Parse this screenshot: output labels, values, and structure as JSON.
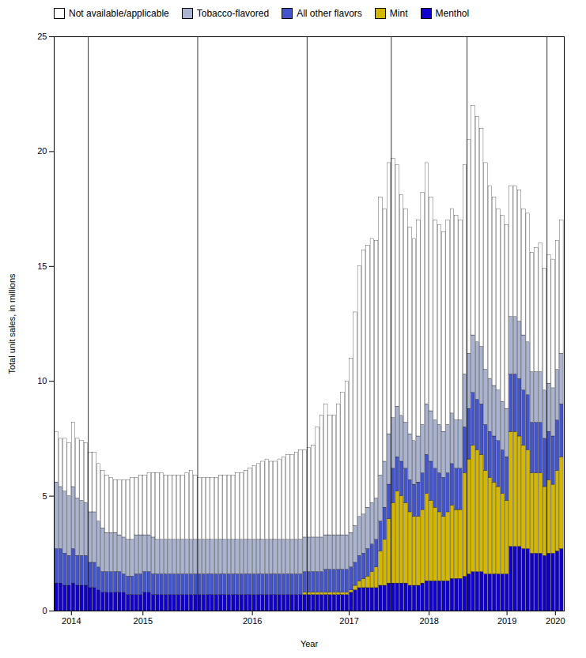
{
  "chart_data": {
    "type": "bar",
    "stacked": true,
    "xlabel": "Year",
    "ylabel": "Total unit sales, in millions",
    "categories": [
      "2014",
      null,
      null,
      null,
      null,
      null,
      null,
      null,
      "2015",
      null,
      null,
      null,
      null,
      null,
      null,
      null,
      null,
      null,
      null,
      null,
      null,
      null,
      null,
      null,
      null,
      null,
      null,
      null,
      null,
      null,
      null,
      null,
      null,
      null,
      "2016",
      null,
      null,
      null,
      null,
      null,
      null,
      null,
      null,
      null,
      null,
      null,
      null,
      null,
      null,
      null,
      null,
      null,
      null,
      null,
      null,
      null,
      null,
      null,
      null,
      null,
      "2017",
      null,
      null,
      null,
      null,
      null,
      null,
      null,
      null,
      null,
      null,
      null,
      null,
      null,
      null,
      null,
      null,
      null,
      null,
      null,
      "2018",
      null,
      null,
      null,
      null,
      null,
      null,
      null,
      null,
      null,
      null,
      null,
      null,
      null,
      null,
      null,
      null,
      null,
      "2019",
      null,
      null,
      null,
      null,
      null,
      null,
      null,
      null,
      null,
      null,
      null,
      null,
      null,
      null,
      null,
      null,
      null,
      null,
      "2020",
      null,
      null,
      null
    ],
    "series": [
      {
        "name": "Menthol",
        "color": "#1100cc",
        "values": [
          1.2,
          1.2,
          1.1,
          1.1,
          1.2,
          1.1,
          1.1,
          1.1,
          1.0,
          1.0,
          0.9,
          0.8,
          0.8,
          0.8,
          0.8,
          0.8,
          0.8,
          0.7,
          0.7,
          0.7,
          0.7,
          0.8,
          0.8,
          0.7,
          0.7,
          0.7,
          0.7,
          0.7,
          0.7,
          0.7,
          0.7,
          0.7,
          0.7,
          0.7,
          0.7,
          0.7,
          0.7,
          0.7,
          0.7,
          0.7,
          0.7,
          0.7,
          0.7,
          0.7,
          0.7,
          0.7,
          0.7,
          0.7,
          0.7,
          0.7,
          0.7,
          0.7,
          0.7,
          0.7,
          0.7,
          0.7,
          0.7,
          0.7,
          0.7,
          0.7,
          0.7,
          0.7,
          0.7,
          0.7,
          0.7,
          0.7,
          0.7,
          0.7,
          0.7,
          0.7,
          0.8,
          0.9,
          1.0,
          1.0,
          1.0,
          1.0,
          1.0,
          1.1,
          1.1,
          1.2,
          1.2,
          1.2,
          1.2,
          1.2,
          1.1,
          1.1,
          1.1,
          1.2,
          1.3,
          1.3,
          1.3,
          1.3,
          1.3,
          1.3,
          1.4,
          1.4,
          1.4,
          1.5,
          1.6,
          1.7,
          1.7,
          1.7,
          1.6,
          1.6,
          1.6,
          1.6,
          1.6,
          1.6,
          2.8,
          2.8,
          2.8,
          2.7,
          2.7,
          2.5,
          2.5,
          2.5,
          2.4,
          2.5,
          2.5,
          2.6,
          2.7
        ]
      },
      {
        "name": "Mint",
        "color": "#d4b800",
        "values": [
          0.0,
          0.0,
          0.0,
          0.0,
          0.0,
          0.0,
          0.0,
          0.0,
          0.0,
          0.0,
          0.0,
          0.0,
          0.0,
          0.0,
          0.0,
          0.0,
          0.0,
          0.0,
          0.0,
          0.0,
          0.0,
          0.0,
          0.0,
          0.0,
          0.0,
          0.0,
          0.0,
          0.0,
          0.0,
          0.0,
          0.0,
          0.0,
          0.0,
          0.0,
          0.0,
          0.0,
          0.0,
          0.0,
          0.0,
          0.0,
          0.0,
          0.0,
          0.0,
          0.0,
          0.0,
          0.0,
          0.0,
          0.0,
          0.0,
          0.0,
          0.0,
          0.0,
          0.0,
          0.0,
          0.0,
          0.0,
          0.0,
          0.0,
          0.0,
          0.1,
          0.1,
          0.1,
          0.1,
          0.1,
          0.1,
          0.1,
          0.1,
          0.1,
          0.1,
          0.1,
          0.1,
          0.2,
          0.3,
          0.4,
          0.5,
          0.7,
          0.9,
          1.5,
          2.0,
          2.8,
          3.5,
          4.0,
          3.8,
          3.5,
          3.2,
          3.0,
          3.0,
          3.2,
          3.8,
          3.5,
          3.2,
          3.0,
          2.8,
          3.0,
          3.2,
          3.0,
          3.0,
          4.5,
          5.0,
          5.5,
          5.3,
          5.1,
          4.5,
          4.2,
          4.0,
          3.8,
          3.5,
          3.2,
          5.0,
          5.0,
          4.8,
          4.5,
          4.3,
          3.5,
          3.5,
          3.5,
          3.0,
          3.2,
          3.0,
          3.5,
          4.0
        ]
      },
      {
        "name": "All other flavors",
        "color": "#4455cc",
        "values": [
          1.5,
          1.5,
          1.4,
          1.3,
          1.5,
          1.3,
          1.3,
          1.3,
          1.1,
          1.1,
          1.0,
          0.9,
          0.9,
          0.9,
          0.9,
          0.9,
          0.8,
          0.8,
          0.8,
          0.9,
          0.9,
          0.9,
          0.9,
          0.9,
          0.9,
          0.9,
          0.9,
          0.9,
          0.9,
          0.9,
          0.9,
          0.9,
          0.9,
          0.9,
          0.9,
          0.9,
          0.9,
          0.9,
          0.9,
          0.9,
          0.9,
          0.9,
          0.9,
          0.9,
          0.9,
          0.9,
          0.9,
          0.9,
          0.9,
          0.9,
          0.9,
          0.9,
          0.9,
          0.9,
          0.9,
          0.9,
          0.9,
          0.9,
          0.9,
          0.9,
          0.9,
          0.9,
          0.9,
          0.9,
          1.0,
          1.0,
          1.0,
          1.0,
          1.0,
          1.0,
          1.0,
          1.0,
          1.1,
          1.1,
          1.2,
          1.2,
          1.2,
          1.3,
          1.4,
          1.5,
          1.5,
          1.5,
          1.5,
          1.5,
          1.4,
          1.4,
          1.5,
          1.6,
          1.7,
          1.7,
          1.7,
          1.7,
          1.7,
          1.7,
          1.8,
          1.8,
          1.8,
          2.0,
          2.2,
          2.3,
          2.2,
          2.2,
          2.0,
          2.0,
          2.0,
          2.0,
          1.9,
          1.9,
          2.5,
          2.5,
          2.5,
          2.4,
          2.4,
          2.2,
          2.2,
          2.2,
          2.1,
          2.1,
          2.1,
          2.2,
          2.3
        ]
      },
      {
        "name": "Tobacco-flavored",
        "color": "#aab4d0",
        "values": [
          2.9,
          2.7,
          2.7,
          2.6,
          2.7,
          2.5,
          2.4,
          2.3,
          2.2,
          2.2,
          2.0,
          1.9,
          1.7,
          1.7,
          1.7,
          1.6,
          1.6,
          1.6,
          1.6,
          1.7,
          1.7,
          1.6,
          1.6,
          1.6,
          1.5,
          1.5,
          1.5,
          1.5,
          1.5,
          1.5,
          1.5,
          1.5,
          1.5,
          1.5,
          1.5,
          1.5,
          1.5,
          1.5,
          1.5,
          1.5,
          1.5,
          1.5,
          1.5,
          1.5,
          1.5,
          1.5,
          1.5,
          1.5,
          1.5,
          1.5,
          1.5,
          1.5,
          1.5,
          1.5,
          1.5,
          1.5,
          1.5,
          1.5,
          1.5,
          1.5,
          1.5,
          1.5,
          1.5,
          1.5,
          1.5,
          1.5,
          1.5,
          1.5,
          1.5,
          1.5,
          1.5,
          1.6,
          1.7,
          1.7,
          1.8,
          1.8,
          1.8,
          2.0,
          2.0,
          2.2,
          2.2,
          2.2,
          2.0,
          2.0,
          2.0,
          1.9,
          2.0,
          2.1,
          2.2,
          2.2,
          2.1,
          2.1,
          2.0,
          2.1,
          2.2,
          2.1,
          2.1,
          2.3,
          2.4,
          2.5,
          2.5,
          2.5,
          2.4,
          2.3,
          2.2,
          2.2,
          2.1,
          2.1,
          2.5,
          2.5,
          2.5,
          2.4,
          2.3,
          2.2,
          2.2,
          2.2,
          2.1,
          2.1,
          2.1,
          2.2,
          2.2
        ]
      },
      {
        "name": "Not available/applicable",
        "color": "#ffffff",
        "values": [
          2.2,
          2.1,
          2.3,
          2.3,
          2.8,
          2.6,
          2.6,
          2.6,
          2.6,
          2.6,
          2.5,
          2.5,
          2.5,
          2.4,
          2.3,
          2.4,
          2.5,
          2.6,
          2.7,
          2.5,
          2.6,
          2.6,
          2.7,
          2.8,
          2.9,
          2.9,
          2.8,
          2.8,
          2.8,
          2.8,
          2.8,
          2.9,
          3.0,
          2.8,
          2.7,
          2.7,
          2.7,
          2.7,
          2.7,
          2.8,
          2.8,
          2.8,
          2.8,
          2.9,
          2.9,
          3.0,
          3.1,
          3.2,
          3.3,
          3.4,
          3.5,
          3.4,
          3.4,
          3.5,
          3.6,
          3.7,
          3.7,
          3.8,
          3.9,
          3.8,
          3.9,
          4.0,
          4.8,
          5.3,
          5.7,
          5.2,
          5.2,
          5.7,
          6.2,
          6.7,
          7.6,
          9.3,
          10.9,
          11.5,
          11.4,
          11.5,
          11.2,
          12.1,
          11.0,
          11.8,
          11.3,
          10.5,
          9.6,
          9.3,
          9.0,
          8.8,
          9.4,
          10.1,
          10.5,
          9.3,
          8.7,
          8.7,
          8.7,
          8.9,
          8.9,
          8.9,
          8.7,
          9.1,
          9.3,
          10.0,
          9.8,
          9.5,
          9.0,
          8.4,
          8.2,
          7.9,
          8.1,
          8.0,
          5.7,
          5.7,
          5.7,
          5.5,
          5.6,
          5.2,
          5.4,
          5.6,
          5.3,
          5.6,
          5.6,
          5.6,
          5.8
        ]
      }
    ],
    "ylim": [
      0,
      25
    ],
    "yticks": [
      0,
      5,
      10,
      15,
      20,
      25
    ],
    "grid": false,
    "legend": "upper left"
  }
}
